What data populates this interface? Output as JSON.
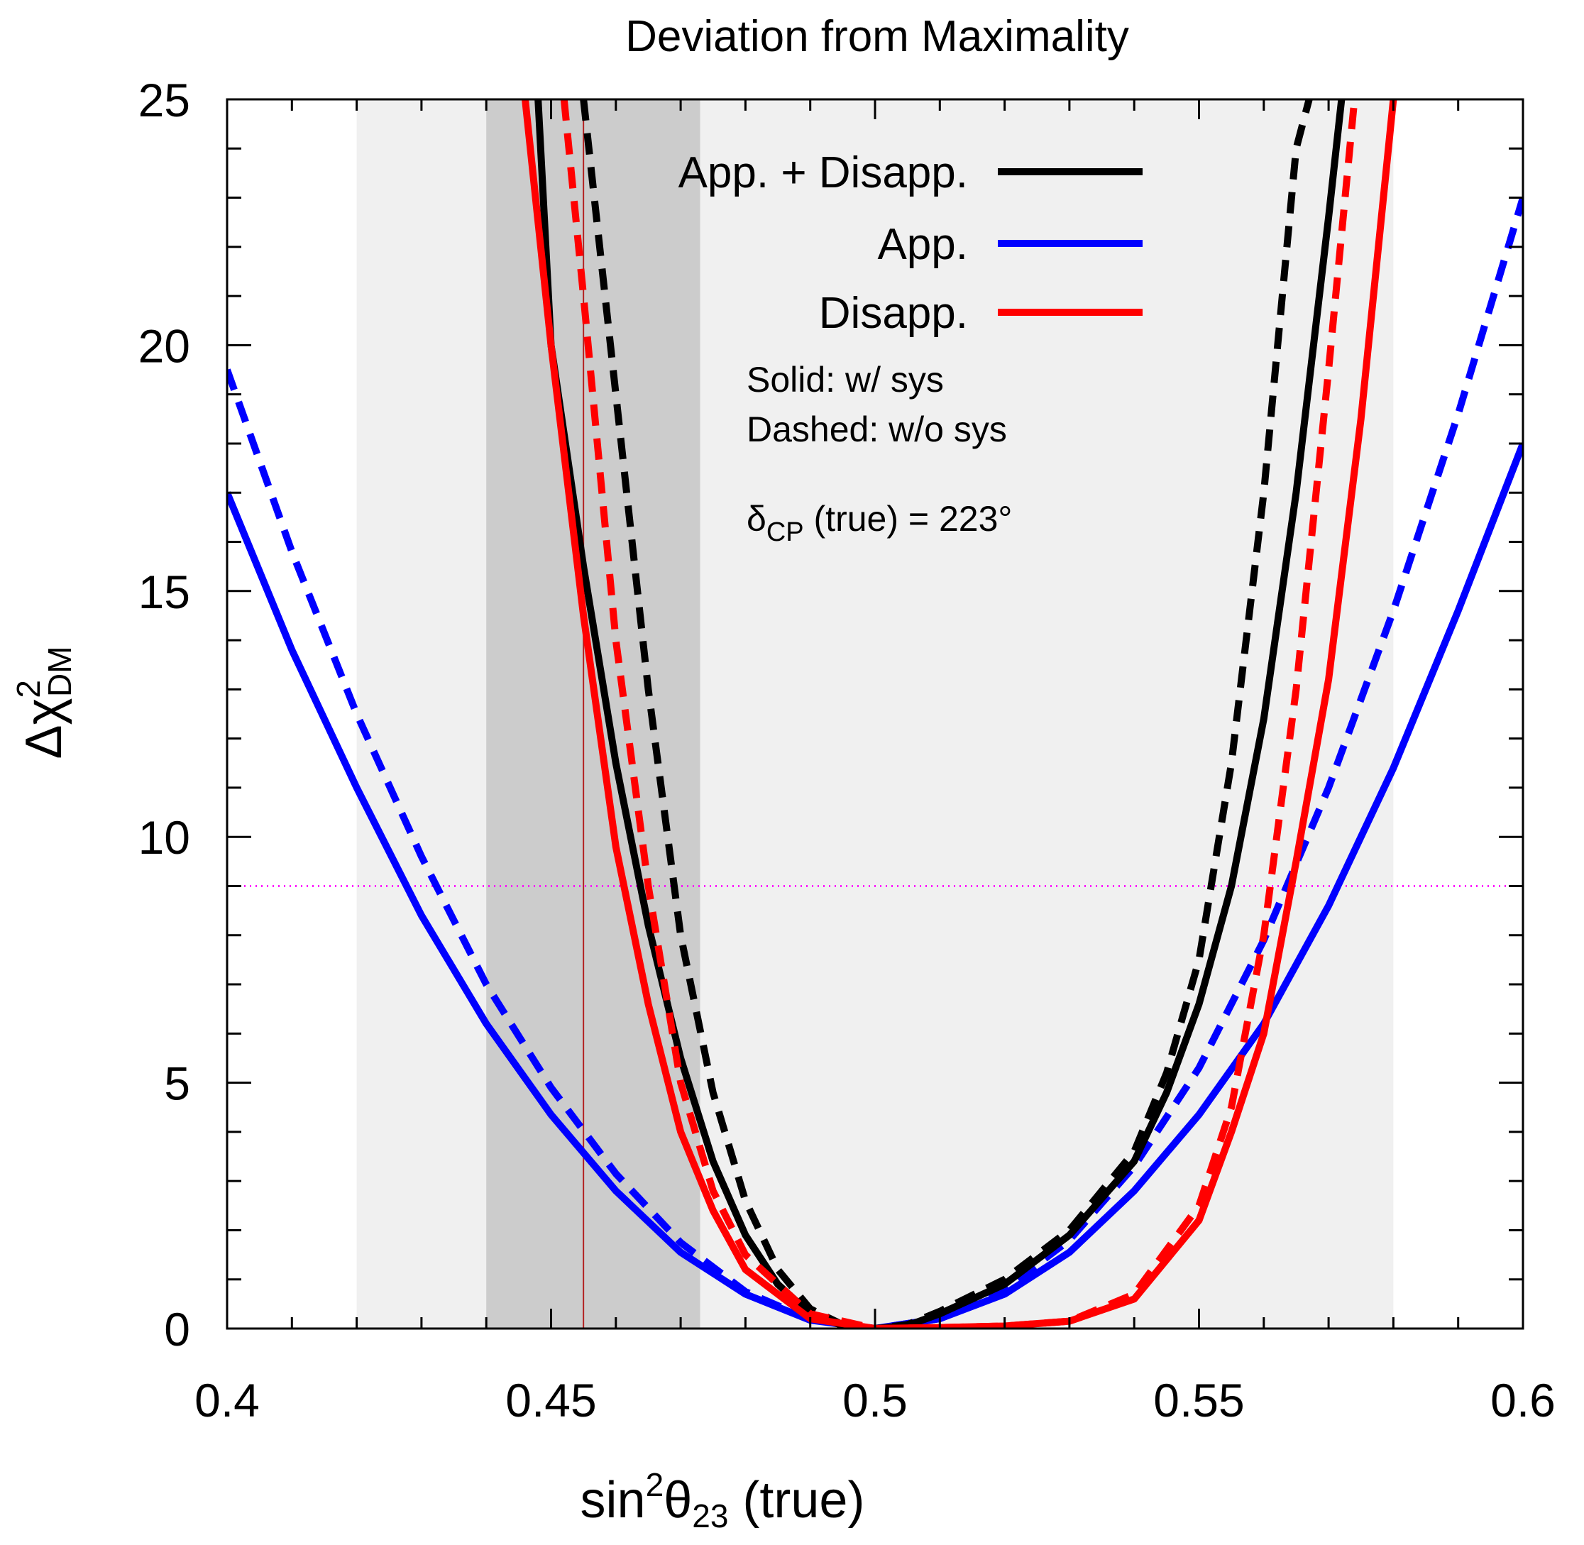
{
  "chart_data": {
    "type": "line",
    "title": "Deviation from Maximality",
    "xlabel": {
      "main": "sin",
      "sup": "2",
      "theta": "θ",
      "sub": "23",
      "tail": " (true)"
    },
    "ylabel": {
      "delta": "Δχ",
      "sup": "2",
      "sub": "DM"
    },
    "xlim": [
      0.4,
      0.6
    ],
    "ylim": [
      0,
      25
    ],
    "xticks": [
      0.4,
      0.45,
      0.5,
      0.55,
      0.6
    ],
    "xtick_labels": [
      "0.4",
      "0.45",
      "0.5",
      "0.55",
      "0.6"
    ],
    "yticks": [
      0,
      5,
      10,
      15,
      20,
      25
    ],
    "ytick_labels": [
      "0",
      "5",
      "10",
      "15",
      "20",
      "25"
    ],
    "x_minor_step": 0.01,
    "y_minor_step": 1,
    "bands": [
      {
        "name": "light-band",
        "x0": 0.42,
        "x1": 0.58,
        "color": "#f0f0f0"
      },
      {
        "name": "dark-band",
        "x0": 0.44,
        "x1": 0.473,
        "color": "#cccccc"
      }
    ],
    "vline": {
      "x": 0.455,
      "color": "#b22222"
    },
    "hline": {
      "y": 9,
      "color": "#ff00ff",
      "style": "dotted"
    },
    "series": [
      {
        "name": "App. solid",
        "color": "#0000ff",
        "dashed": false,
        "x": [
          0.4,
          0.41,
          0.42,
          0.43,
          0.44,
          0.45,
          0.46,
          0.47,
          0.48,
          0.49,
          0.5,
          0.51,
          0.52,
          0.53,
          0.54,
          0.55,
          0.56,
          0.57,
          0.58,
          0.59,
          0.6
        ],
        "y": [
          17.0,
          13.8,
          11.0,
          8.4,
          6.2,
          4.35,
          2.8,
          1.55,
          0.7,
          0.17,
          0.0,
          0.2,
          0.7,
          1.55,
          2.8,
          4.35,
          6.2,
          8.6,
          11.4,
          14.6,
          18.0
        ]
      },
      {
        "name": "App. dashed",
        "color": "#0000ff",
        "dashed": true,
        "x": [
          0.4,
          0.41,
          0.42,
          0.43,
          0.44,
          0.45,
          0.46,
          0.47,
          0.48,
          0.49,
          0.5,
          0.51,
          0.52,
          0.53,
          0.54,
          0.55,
          0.56,
          0.57,
          0.58,
          0.59,
          0.6
        ],
        "y": [
          19.5,
          15.8,
          12.5,
          9.6,
          7.0,
          4.9,
          3.15,
          1.75,
          0.75,
          0.18,
          0.0,
          0.2,
          0.8,
          1.8,
          3.3,
          5.3,
          7.9,
          11.0,
          14.6,
          18.6,
          23.0
        ]
      },
      {
        "name": "App. + Disapp. solid",
        "color": "#000000",
        "dashed": false,
        "x": [
          0.448,
          0.45,
          0.455,
          0.46,
          0.465,
          0.47,
          0.475,
          0.48,
          0.485,
          0.49,
          0.495,
          0.5,
          0.505,
          0.51,
          0.52,
          0.53,
          0.54,
          0.545,
          0.55,
          0.555,
          0.56,
          0.565,
          0.57,
          0.572
        ],
        "y": [
          25,
          20.0,
          15.5,
          11.5,
          8.2,
          5.5,
          3.4,
          1.9,
          0.9,
          0.3,
          0.06,
          0.0,
          0.06,
          0.3,
          0.9,
          1.9,
          3.4,
          4.8,
          6.6,
          9.0,
          12.4,
          17.0,
          22.6,
          25
        ]
      },
      {
        "name": "App. + Disapp. dashed",
        "color": "#000000",
        "dashed": true,
        "x": [
          0.455,
          0.46,
          0.465,
          0.47,
          0.475,
          0.48,
          0.485,
          0.49,
          0.495,
          0.5,
          0.505,
          0.51,
          0.52,
          0.53,
          0.54,
          0.545,
          0.55,
          0.555,
          0.56,
          0.565,
          0.567
        ],
        "y": [
          25,
          19.0,
          13.0,
          8.0,
          4.8,
          2.6,
          1.2,
          0.4,
          0.08,
          0.0,
          0.08,
          0.35,
          1.0,
          2.0,
          3.6,
          5.2,
          7.5,
          11.5,
          17.0,
          24.0,
          25
        ]
      },
      {
        "name": "Disapp. solid",
        "color": "#ff0000",
        "dashed": false,
        "x": [
          0.446,
          0.45,
          0.455,
          0.46,
          0.465,
          0.47,
          0.475,
          0.48,
          0.49,
          0.5,
          0.51,
          0.52,
          0.53,
          0.54,
          0.55,
          0.555,
          0.56,
          0.565,
          0.57,
          0.575,
          0.58
        ],
        "y": [
          25,
          20.0,
          14.5,
          9.8,
          6.6,
          4.0,
          2.4,
          1.2,
          0.2,
          0.0,
          0.02,
          0.05,
          0.15,
          0.6,
          2.2,
          4.0,
          6.0,
          9.5,
          13.2,
          18.5,
          25
        ]
      },
      {
        "name": "Disapp. dashed",
        "color": "#ff0000",
        "dashed": true,
        "x": [
          0.452,
          0.455,
          0.46,
          0.465,
          0.47,
          0.475,
          0.48,
          0.49,
          0.5,
          0.51,
          0.52,
          0.53,
          0.54,
          0.55,
          0.555,
          0.56,
          0.565,
          0.57,
          0.574
        ],
        "y": [
          25,
          21.0,
          14.0,
          9.0,
          5.0,
          2.8,
          1.5,
          0.3,
          0.0,
          0.02,
          0.05,
          0.15,
          0.7,
          2.5,
          4.5,
          8.0,
          13.0,
          19.5,
          25
        ]
      }
    ],
    "legend": {
      "position": "top-right",
      "entries": [
        {
          "label": "App. + Disapp.",
          "color": "#000000"
        },
        {
          "label": "App.",
          "color": "#0000ff"
        },
        {
          "label": "Disapp.",
          "color": "#ff0000"
        }
      ]
    },
    "annotations": {
      "solid": "Solid: w/ sys",
      "dashed": "Dashed: w/o sys",
      "delta_symbol": "δ",
      "delta_sub": "CP",
      "delta_tail": " (true) = 223°"
    }
  }
}
